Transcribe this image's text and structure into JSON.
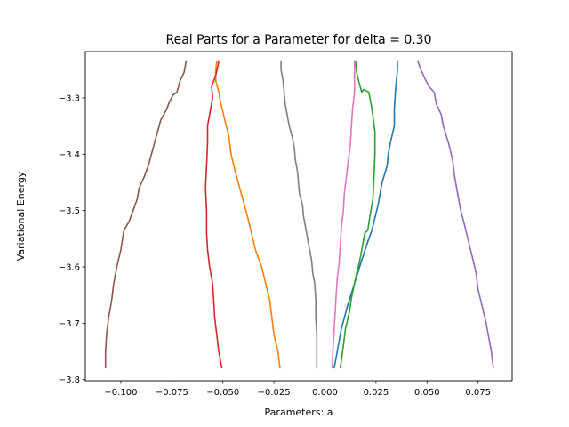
{
  "chart_data": {
    "type": "line",
    "title": "Real Parts for a Parameter for delta = 0.30",
    "xlabel": "Parameters: a",
    "ylabel": "Variational Energy",
    "xlim": [
      -0.1174,
      0.0917
    ],
    "ylim": [
      -3.802,
      -3.218
    ],
    "grid": false,
    "legend": "none",
    "x_ticks": [
      {
        "value": -0.1,
        "label": "−0.100"
      },
      {
        "value": -0.075,
        "label": "−0.075"
      },
      {
        "value": -0.05,
        "label": "−0.050"
      },
      {
        "value": -0.025,
        "label": "−0.025"
      },
      {
        "value": 0.0,
        "label": "0.000"
      },
      {
        "value": 0.025,
        "label": "0.025"
      },
      {
        "value": 0.05,
        "label": "0.050"
      },
      {
        "value": 0.075,
        "label": "0.075"
      }
    ],
    "y_ticks": [
      {
        "value": -3.3,
        "label": "−3.3"
      },
      {
        "value": -3.4,
        "label": "−3.4"
      },
      {
        "value": -3.5,
        "label": "−3.5"
      },
      {
        "value": -3.6,
        "label": "−3.6"
      },
      {
        "value": -3.7,
        "label": "−3.7"
      },
      {
        "value": -3.8,
        "label": "−3.8"
      }
    ],
    "series": [
      {
        "color": "#1f77b4",
        "points": [
          [
            0.0045,
            -3.78
          ],
          [
            0.006,
            -3.75
          ],
          [
            0.008,
            -3.71
          ],
          [
            0.011,
            -3.67
          ],
          [
            0.014,
            -3.635
          ],
          [
            0.017,
            -3.6
          ],
          [
            0.0205,
            -3.56
          ],
          [
            0.023,
            -3.535
          ],
          [
            0.026,
            -3.49
          ],
          [
            0.028,
            -3.45
          ],
          [
            0.0305,
            -3.42
          ],
          [
            0.031,
            -3.4
          ],
          [
            0.032,
            -3.38
          ],
          [
            0.034,
            -3.35
          ],
          [
            0.034,
            -3.32
          ],
          [
            0.0345,
            -3.29
          ],
          [
            0.035,
            -3.27
          ],
          [
            0.0355,
            -3.25
          ],
          [
            0.0355,
            -3.235
          ]
        ]
      },
      {
        "color": "#ff7f0e",
        "points": [
          [
            -0.022,
            -3.78
          ],
          [
            -0.023,
            -3.75
          ],
          [
            -0.025,
            -3.72
          ],
          [
            -0.026,
            -3.69
          ],
          [
            -0.027,
            -3.66
          ],
          [
            -0.029,
            -3.63
          ],
          [
            -0.031,
            -3.6
          ],
          [
            -0.034,
            -3.57
          ],
          [
            -0.036,
            -3.54
          ],
          [
            -0.038,
            -3.51
          ],
          [
            -0.041,
            -3.47
          ],
          [
            -0.044,
            -3.43
          ],
          [
            -0.046,
            -3.4
          ],
          [
            -0.047,
            -3.37
          ],
          [
            -0.049,
            -3.34
          ],
          [
            -0.051,
            -3.31
          ],
          [
            -0.052,
            -3.29
          ],
          [
            -0.0535,
            -3.27
          ],
          [
            -0.0535,
            -3.25
          ],
          [
            -0.053,
            -3.235
          ]
        ]
      },
      {
        "color": "#2ca02c",
        "points": [
          [
            0.0075,
            -3.78
          ],
          [
            0.009,
            -3.74
          ],
          [
            0.01,
            -3.71
          ],
          [
            0.012,
            -3.68
          ],
          [
            0.013,
            -3.655
          ],
          [
            0.015,
            -3.62
          ],
          [
            0.017,
            -3.59
          ],
          [
            0.0185,
            -3.56
          ],
          [
            0.0195,
            -3.54
          ],
          [
            0.021,
            -3.535
          ],
          [
            0.022,
            -3.51
          ],
          [
            0.0235,
            -3.48
          ],
          [
            0.024,
            -3.44
          ],
          [
            0.0245,
            -3.4
          ],
          [
            0.0245,
            -3.36
          ],
          [
            0.023,
            -3.32
          ],
          [
            0.022,
            -3.3
          ],
          [
            0.0215,
            -3.29
          ],
          [
            0.019,
            -3.285
          ],
          [
            0.018,
            -3.29
          ],
          [
            0.0165,
            -3.27
          ],
          [
            0.0155,
            -3.255
          ],
          [
            0.015,
            -3.235
          ]
        ]
      },
      {
        "color": "#d62728",
        "points": [
          [
            -0.0505,
            -3.78
          ],
          [
            -0.052,
            -3.75
          ],
          [
            -0.053,
            -3.72
          ],
          [
            -0.054,
            -3.69
          ],
          [
            -0.0545,
            -3.66
          ],
          [
            -0.055,
            -3.63
          ],
          [
            -0.0565,
            -3.6
          ],
          [
            -0.0575,
            -3.57
          ],
          [
            -0.058,
            -3.54
          ],
          [
            -0.058,
            -3.5
          ],
          [
            -0.0585,
            -3.46
          ],
          [
            -0.058,
            -3.42
          ],
          [
            -0.0575,
            -3.38
          ],
          [
            -0.0575,
            -3.35
          ],
          [
            -0.056,
            -3.32
          ],
          [
            -0.055,
            -3.3
          ],
          [
            -0.0555,
            -3.28
          ],
          [
            -0.0545,
            -3.27
          ],
          [
            -0.0535,
            -3.26
          ],
          [
            -0.0525,
            -3.245
          ],
          [
            -0.052,
            -3.235
          ]
        ]
      },
      {
        "color": "#9467bd",
        "points": [
          [
            0.0825,
            -3.78
          ],
          [
            0.0815,
            -3.75
          ],
          [
            0.08,
            -3.72
          ],
          [
            0.079,
            -3.7
          ],
          [
            0.077,
            -3.67
          ],
          [
            0.075,
            -3.64
          ],
          [
            0.074,
            -3.61
          ],
          [
            0.072,
            -3.58
          ],
          [
            0.07,
            -3.55
          ],
          [
            0.068,
            -3.52
          ],
          [
            0.0665,
            -3.5
          ],
          [
            0.065,
            -3.47
          ],
          [
            0.0635,
            -3.44
          ],
          [
            0.0625,
            -3.41
          ],
          [
            0.0605,
            -3.38
          ],
          [
            0.058,
            -3.35
          ],
          [
            0.057,
            -3.33
          ],
          [
            0.0545,
            -3.31
          ],
          [
            0.0535,
            -3.29
          ],
          [
            0.051,
            -3.28
          ],
          [
            0.0495,
            -3.27
          ],
          [
            0.047,
            -3.25
          ],
          [
            0.0455,
            -3.235
          ]
        ]
      },
      {
        "color": "#8c564b",
        "points": [
          [
            -0.1075,
            -3.78
          ],
          [
            -0.1075,
            -3.75
          ],
          [
            -0.107,
            -3.72
          ],
          [
            -0.106,
            -3.69
          ],
          [
            -0.1045,
            -3.66
          ],
          [
            -0.1035,
            -3.63
          ],
          [
            -0.102,
            -3.6
          ],
          [
            -0.1,
            -3.57
          ],
          [
            -0.0985,
            -3.535
          ],
          [
            -0.096,
            -3.52
          ],
          [
            -0.094,
            -3.5
          ],
          [
            -0.092,
            -3.48
          ],
          [
            -0.091,
            -3.46
          ],
          [
            -0.0885,
            -3.44
          ],
          [
            -0.0865,
            -3.42
          ],
          [
            -0.085,
            -3.4
          ],
          [
            -0.0835,
            -3.38
          ],
          [
            -0.082,
            -3.36
          ],
          [
            -0.0805,
            -3.34
          ],
          [
            -0.0775,
            -3.32
          ],
          [
            -0.0765,
            -3.31
          ],
          [
            -0.0745,
            -3.295
          ],
          [
            -0.0725,
            -3.29
          ],
          [
            -0.071,
            -3.27
          ],
          [
            -0.069,
            -3.255
          ],
          [
            -0.068,
            -3.235
          ]
        ]
      },
      {
        "color": "#e377c2",
        "points": [
          [
            0.0035,
            -3.78
          ],
          [
            0.004,
            -3.74
          ],
          [
            0.0045,
            -3.71
          ],
          [
            0.005,
            -3.68
          ],
          [
            0.0055,
            -3.65
          ],
          [
            0.006,
            -3.62
          ],
          [
            0.007,
            -3.59
          ],
          [
            0.0075,
            -3.56
          ],
          [
            0.008,
            -3.53
          ],
          [
            0.009,
            -3.5
          ],
          [
            0.0095,
            -3.47
          ],
          [
            0.0105,
            -3.44
          ],
          [
            0.0115,
            -3.41
          ],
          [
            0.0125,
            -3.38
          ],
          [
            0.013,
            -3.35
          ],
          [
            0.0135,
            -3.32
          ],
          [
            0.0145,
            -3.29
          ],
          [
            0.0145,
            -3.265
          ],
          [
            0.0145,
            -3.235
          ]
        ]
      },
      {
        "color": "#7f7f7f",
        "points": [
          [
            -0.004,
            -3.78
          ],
          [
            -0.004,
            -3.75
          ],
          [
            -0.004,
            -3.72
          ],
          [
            -0.0045,
            -3.69
          ],
          [
            -0.0045,
            -3.66
          ],
          [
            -0.005,
            -3.63
          ],
          [
            -0.006,
            -3.61
          ],
          [
            -0.0065,
            -3.59
          ],
          [
            -0.0075,
            -3.57
          ],
          [
            -0.0085,
            -3.55
          ],
          [
            -0.0095,
            -3.53
          ],
          [
            -0.0105,
            -3.51
          ],
          [
            -0.011,
            -3.49
          ],
          [
            -0.0125,
            -3.47
          ],
          [
            -0.013,
            -3.45
          ],
          [
            -0.0135,
            -3.43
          ],
          [
            -0.0145,
            -3.41
          ],
          [
            -0.015,
            -3.39
          ],
          [
            -0.016,
            -3.37
          ],
          [
            -0.0175,
            -3.35
          ],
          [
            -0.0185,
            -3.33
          ],
          [
            -0.0195,
            -3.31
          ],
          [
            -0.02,
            -3.29
          ],
          [
            -0.0205,
            -3.27
          ],
          [
            -0.0215,
            -3.25
          ],
          [
            -0.0215,
            -3.235
          ]
        ]
      }
    ]
  }
}
